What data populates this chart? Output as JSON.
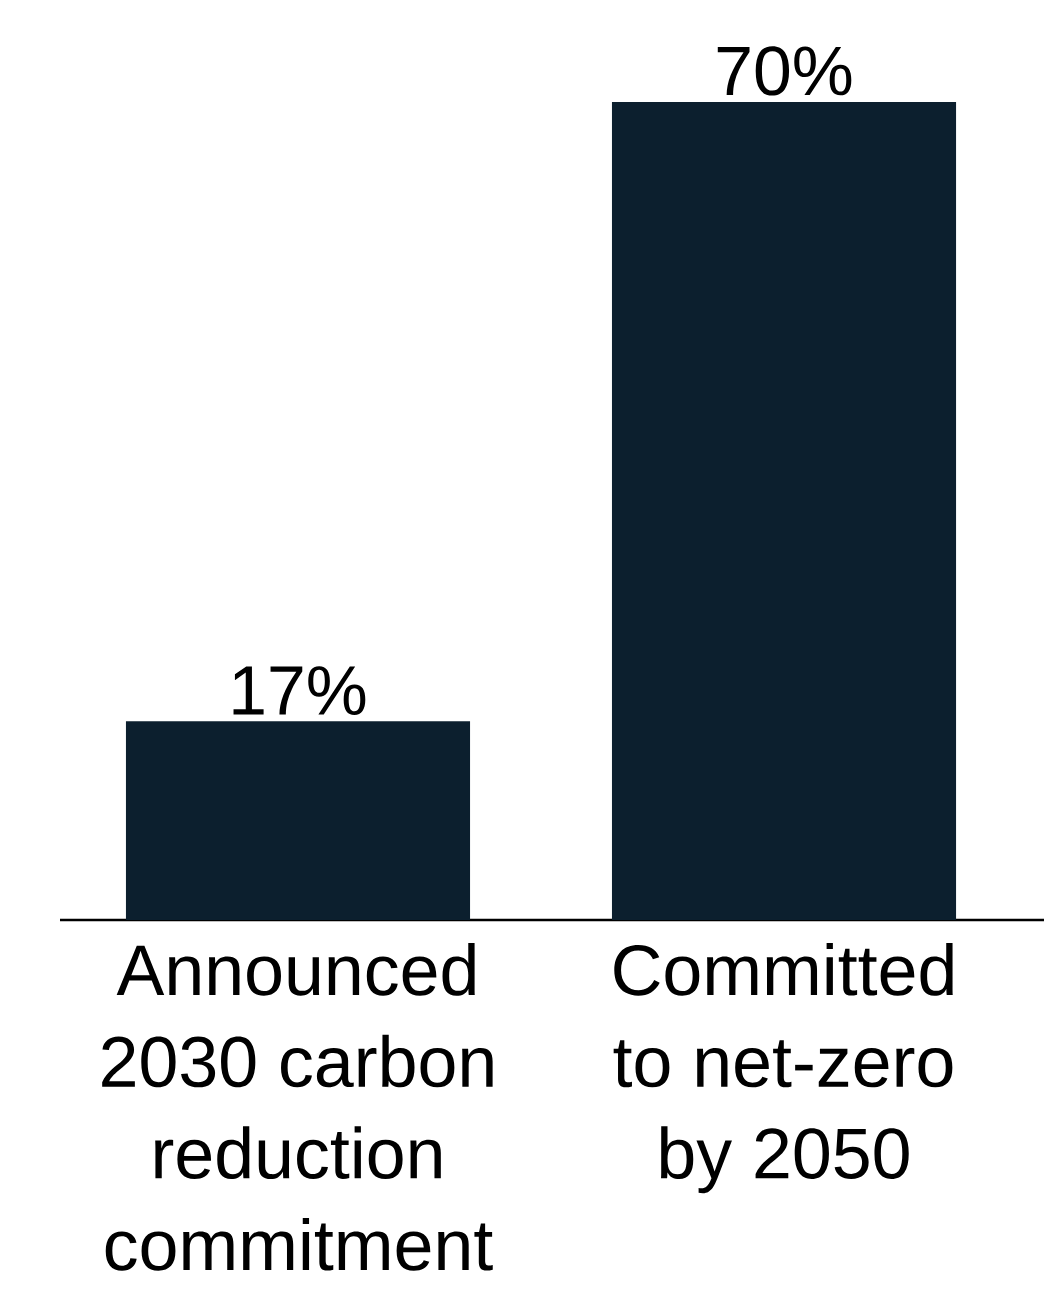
{
  "chart_data": {
    "type": "bar",
    "categories": [
      "Announced 2030 carbon reduction commitment",
      "Committed to net-zero by 2050"
    ],
    "values": [
      17,
      70
    ],
    "value_labels": [
      "17%",
      "70%"
    ],
    "color": "#0c1f2e"
  }
}
